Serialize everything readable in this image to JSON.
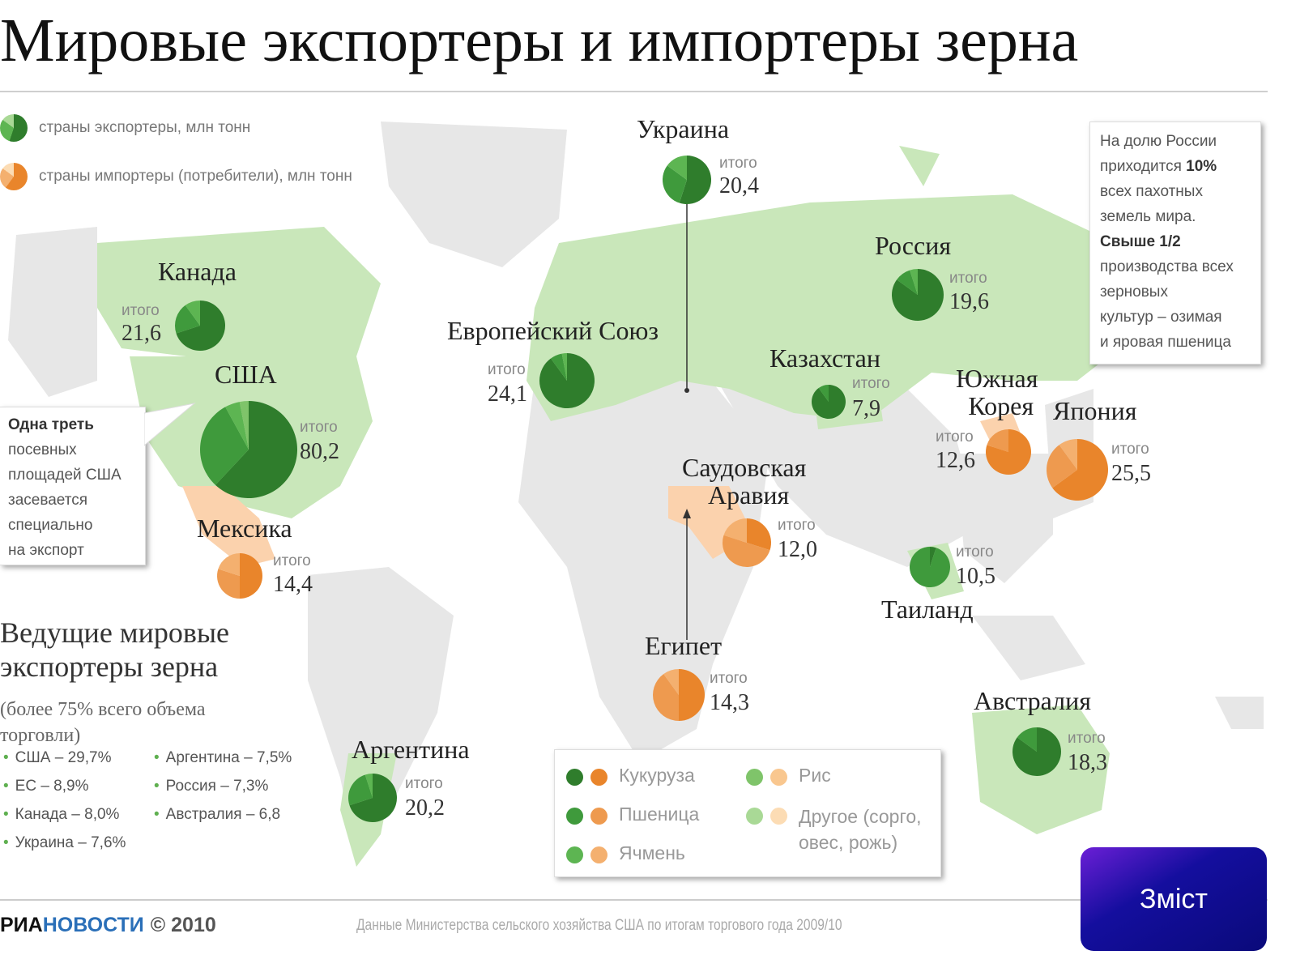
{
  "title": "Мировые экспортеры и импортеры зерна",
  "legend": {
    "exporters": "страны экспортеры, млн тонн",
    "importers": "страны импортеры (потребители), млн тонн"
  },
  "colors": {
    "exporter_dark": "#3f9a3c",
    "exporter_light": "#9fd48a",
    "importer_dark": "#f08a2c",
    "importer_light": "#fbc99a",
    "land_green": "#c8e6b8",
    "land_gray": "#e6e6e6",
    "land_orange": "#fbd2ad",
    "button_start": "#6b1fd6",
    "button_end": "#0a0a7a"
  },
  "total_label": "итого",
  "countries": [
    {
      "id": "ukraine",
      "name": "Украина",
      "total": "20,4",
      "type": "exporter"
    },
    {
      "id": "canada",
      "name": "Канада",
      "total": "21,6",
      "type": "exporter"
    },
    {
      "id": "usa",
      "name": "США",
      "total": "80,2",
      "type": "exporter"
    },
    {
      "id": "eu",
      "name": "Европейский Союз",
      "total": "24,1",
      "type": "exporter"
    },
    {
      "id": "russia",
      "name": "Россия",
      "total": "19,6",
      "type": "exporter"
    },
    {
      "id": "kazakhstan",
      "name": "Казахстан",
      "total": "7,9",
      "type": "exporter"
    },
    {
      "id": "south_korea",
      "name": "Южная Корея",
      "name_line1": "Южная",
      "name_line2": "Корея",
      "total": "12,6",
      "type": "importer"
    },
    {
      "id": "japan",
      "name": "Япония",
      "total": "25,5",
      "type": "importer"
    },
    {
      "id": "saudi",
      "name": "Саудовская Аравия",
      "name_line1": "Саудовская",
      "name_line2": "Аравия",
      "total": "12,0",
      "type": "importer"
    },
    {
      "id": "mexico",
      "name": "Мексика",
      "total": "14,4",
      "type": "importer"
    },
    {
      "id": "thailand",
      "name": "Таиланд",
      "total": "10,5",
      "type": "exporter"
    },
    {
      "id": "egypt",
      "name": "Египет",
      "total": "14,3",
      "type": "importer"
    },
    {
      "id": "australia",
      "name": "Австралия",
      "total": "18,3",
      "type": "exporter"
    },
    {
      "id": "argentina",
      "name": "Аргентина",
      "total": "20,2",
      "type": "exporter"
    }
  ],
  "russia_note": {
    "l1": "На долю России",
    "l2a": "приходится ",
    "l2b": "10%",
    "l3": "всех пахотных",
    "l4": "земель мира.",
    "l5": "Свыше 1/2",
    "l6": "производства всех",
    "l7": "зерновых",
    "l8": "культур – озимая",
    "l9": "и яровая пшеница"
  },
  "usa_note": {
    "l1": "Одна треть",
    "l2": "посевных",
    "l3": "площадей США",
    "l4": "засевается",
    "l5": "специально",
    "l6": "на экспорт"
  },
  "leaders": {
    "title_line1": "Ведущие мировые",
    "title_line2": "экспортеры зерна",
    "subtitle_line1": "(более 75% всего объема",
    "subtitle_line2": "торговли)",
    "col1": [
      "США – 29,7%",
      "ЕС – 8,9%",
      "Канада – 8,0%",
      "Украина – 7,6%"
    ],
    "col2": [
      "Аргентина – 7,5%",
      "Россия – 7,3%",
      "Австралия – 6,8"
    ]
  },
  "crop_legend": {
    "corn": "Кукуруза",
    "wheat": "Пшеница",
    "barley": "Ячмень",
    "rice": "Рис",
    "other_line1": "Другое (сорго,",
    "other_line2": "овес, рожь)",
    "colors": {
      "corn": [
        "#2f7d2c",
        "#e9852b"
      ],
      "wheat": [
        "#3f9a3c",
        "#ee9a4f"
      ],
      "barley": [
        "#5db552",
        "#f4b06f"
      ],
      "rice": [
        "#7fc46a",
        "#f9c78f"
      ],
      "other": [
        "#a9d996",
        "#fcdcb4"
      ]
    }
  },
  "footer": {
    "brand_a": "РИА",
    "brand_b": "НОВОСТИ",
    "copyright": "© 2010",
    "source": "Данные Министерства сельского хозяйства США по итогам торгового года 2009/10"
  },
  "nav_button": "Зміст"
}
